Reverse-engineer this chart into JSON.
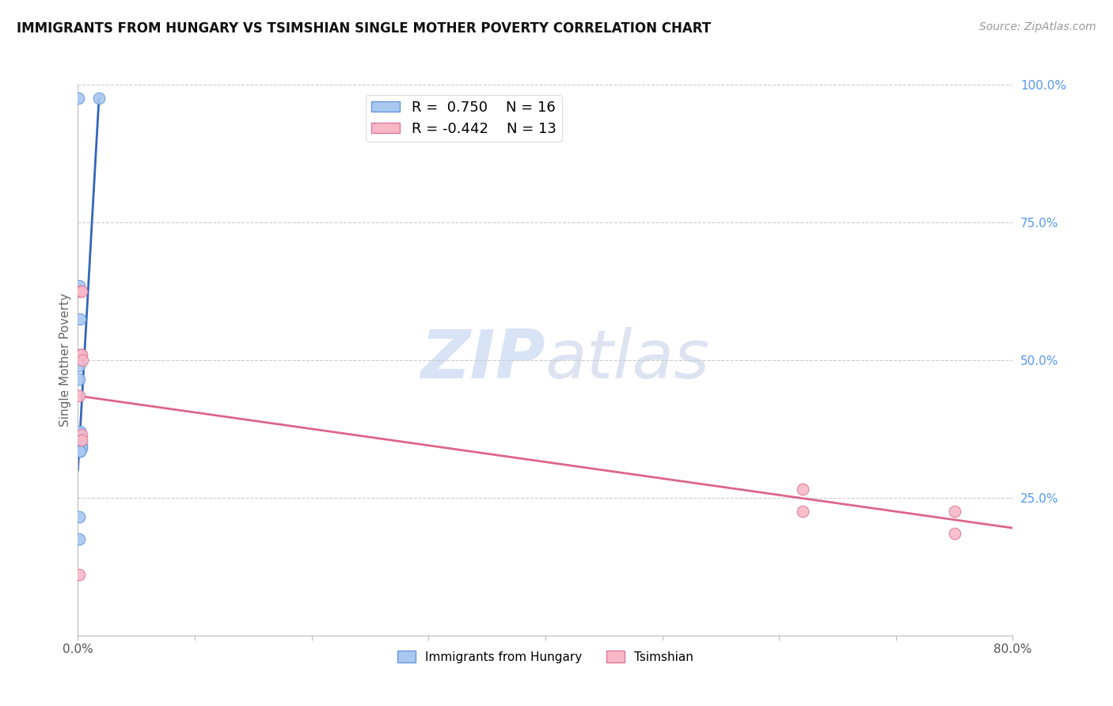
{
  "title": "IMMIGRANTS FROM HUNGARY VS TSIMSHIAN SINGLE MOTHER POVERTY CORRELATION CHART",
  "source": "Source: ZipAtlas.com",
  "ylabel": "Single Mother Poverty",
  "watermark_zip": "ZIP",
  "watermark_atlas": "atlas",
  "legend_blue_R": "0.750",
  "legend_blue_N": "16",
  "legend_pink_R": "-0.442",
  "legend_pink_N": "13",
  "xlim": [
    0.0,
    0.8
  ],
  "ylim": [
    0.0,
    1.0
  ],
  "xticks": [
    0.0,
    0.1,
    0.2,
    0.3,
    0.4,
    0.5,
    0.6,
    0.7,
    0.8
  ],
  "xtick_labels": [
    "0.0%",
    "",
    "",
    "",
    "",
    "",
    "",
    "",
    "80.0%"
  ],
  "yticks_right": [
    0.25,
    0.5,
    0.75,
    1.0
  ],
  "yticks_right_labels": [
    "25.0%",
    "50.0%",
    "75.0%",
    "100.0%"
  ],
  "blue_scatter_x": [
    0.0005,
    0.018,
    0.001,
    0.002,
    0.001,
    0.001,
    0.002,
    0.002,
    0.002,
    0.002,
    0.003,
    0.003,
    0.002,
    0.002,
    0.001,
    0.001
  ],
  "blue_scatter_y": [
    0.975,
    0.975,
    0.635,
    0.575,
    0.49,
    0.465,
    0.37,
    0.36,
    0.355,
    0.345,
    0.345,
    0.34,
    0.335,
    0.335,
    0.215,
    0.175
  ],
  "pink_scatter_x": [
    0.001,
    0.002,
    0.003,
    0.002,
    0.003,
    0.004,
    0.003,
    0.003,
    0.001,
    0.62,
    0.62,
    0.75,
    0.75
  ],
  "pink_scatter_y": [
    0.435,
    0.625,
    0.625,
    0.51,
    0.51,
    0.5,
    0.365,
    0.355,
    0.11,
    0.265,
    0.225,
    0.225,
    0.185
  ],
  "blue_line_x": [
    0.0,
    0.018
  ],
  "blue_line_y": [
    0.3,
    0.975
  ],
  "pink_line_x": [
    0.0,
    0.8
  ],
  "pink_line_y": [
    0.435,
    0.195
  ],
  "blue_color": "#A8C8F0",
  "blue_edge_color": "#6699DD",
  "blue_line_color": "#3366BB",
  "pink_color": "#F8B8C8",
  "pink_edge_color": "#DD7799",
  "pink_line_color": "#DD6688",
  "background_color": "#FFFFFF",
  "grid_color": "#CCCCCC",
  "right_axis_color": "#5599EE",
  "title_fontsize": 12,
  "source_fontsize": 10,
  "label_fontsize": 11,
  "tick_fontsize": 11,
  "legend_fontsize": 13,
  "scatter_size": 110
}
